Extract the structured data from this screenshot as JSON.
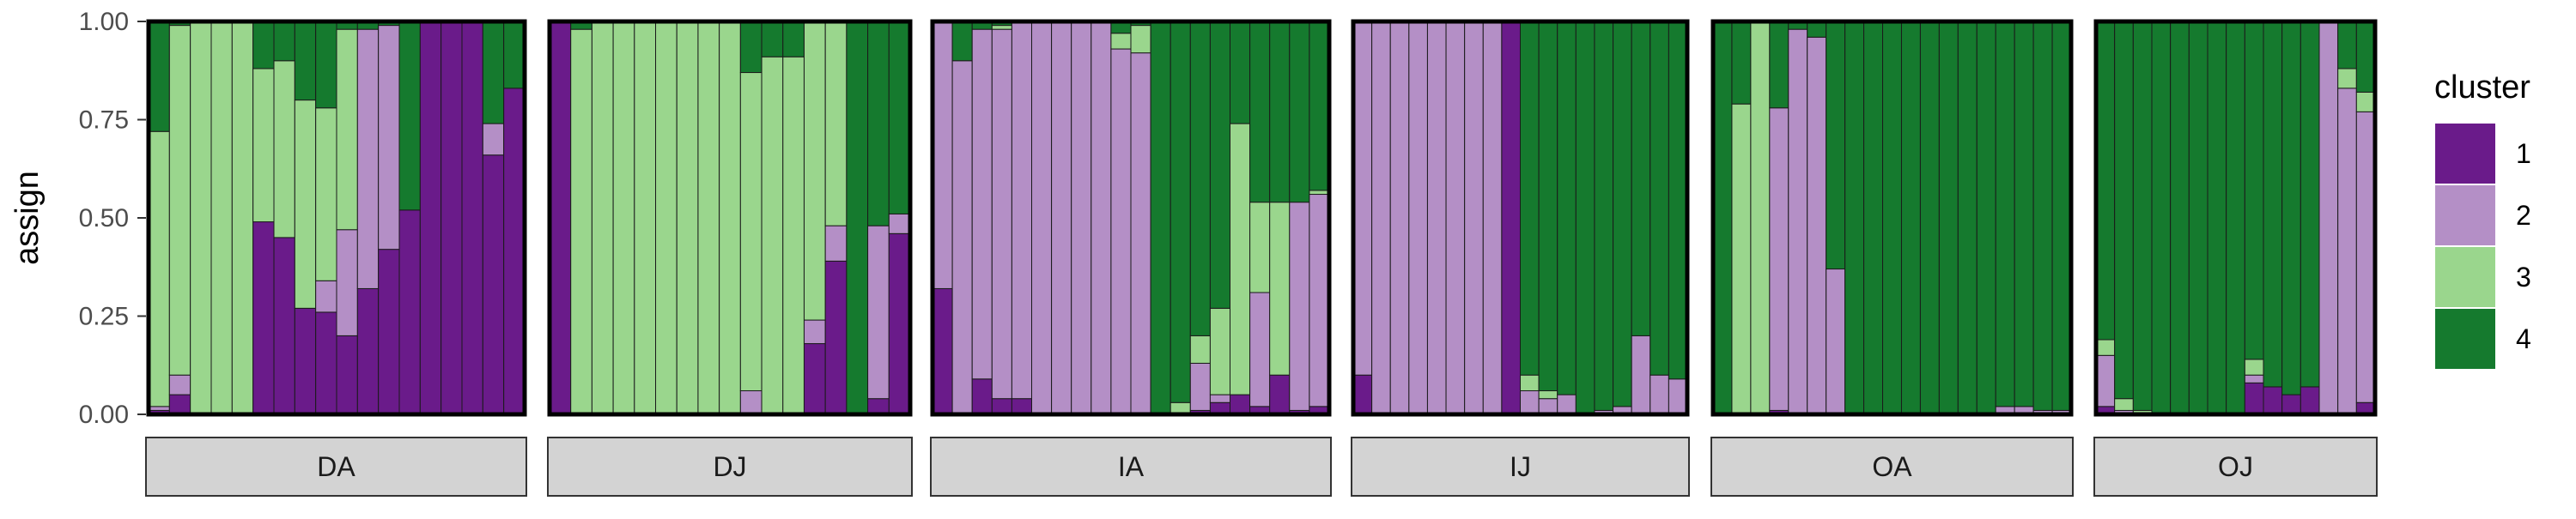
{
  "chart_data": {
    "type": "bar",
    "subtype": "stacked-100-faceted",
    "ylabel": "assign",
    "xlabel": "",
    "ylim": [
      0,
      1
    ],
    "yticks": [
      "0.00",
      "0.25",
      "0.50",
      "0.75",
      "1.00"
    ],
    "legend": {
      "title": "cluster",
      "position": "right",
      "entries": [
        {
          "label": "1",
          "color": "#6a1b8a"
        },
        {
          "label": "2",
          "color": "#b48fc6"
        },
        {
          "label": "3",
          "color": "#9ad68d"
        },
        {
          "label": "4",
          "color": "#157a2e"
        }
      ]
    },
    "stack_order": [
      "1",
      "2",
      "3",
      "4"
    ],
    "facets": [
      {
        "label": "DA",
        "bars": [
          [
            0.01,
            0.01,
            0.7,
            0.28
          ],
          [
            0.05,
            0.05,
            0.89,
            0.01
          ],
          [
            0.0,
            0.0,
            1.0,
            0.0
          ],
          [
            0.0,
            0.0,
            1.0,
            0.0
          ],
          [
            0.0,
            0.0,
            1.0,
            0.0
          ],
          [
            0.49,
            0.0,
            0.39,
            0.12
          ],
          [
            0.45,
            0.0,
            0.45,
            0.1
          ],
          [
            0.27,
            0.0,
            0.53,
            0.2
          ],
          [
            0.26,
            0.08,
            0.44,
            0.22
          ],
          [
            0.2,
            0.27,
            0.51,
            0.02
          ],
          [
            0.32,
            0.66,
            0.0,
            0.02
          ],
          [
            0.42,
            0.57,
            0.0,
            0.01
          ],
          [
            0.52,
            0.0,
            0.0,
            0.48
          ],
          [
            1.0,
            0.0,
            0.0,
            0.0
          ],
          [
            1.0,
            0.0,
            0.0,
            0.0
          ],
          [
            1.0,
            0.0,
            0.0,
            0.0
          ],
          [
            0.66,
            0.08,
            0.0,
            0.26
          ],
          [
            0.83,
            0.0,
            0.0,
            0.17
          ]
        ]
      },
      {
        "label": "DJ",
        "bars": [
          [
            1.0,
            0.0,
            0.0,
            0.0
          ],
          [
            0.0,
            0.0,
            0.98,
            0.02
          ],
          [
            0.0,
            0.0,
            1.0,
            0.0
          ],
          [
            0.0,
            0.0,
            1.0,
            0.0
          ],
          [
            0.0,
            0.0,
            1.0,
            0.0
          ],
          [
            0.0,
            0.0,
            1.0,
            0.0
          ],
          [
            0.0,
            0.0,
            1.0,
            0.0
          ],
          [
            0.0,
            0.0,
            1.0,
            0.0
          ],
          [
            0.0,
            0.0,
            1.0,
            0.0
          ],
          [
            0.0,
            0.06,
            0.81,
            0.13
          ],
          [
            0.0,
            0.0,
            0.91,
            0.09
          ],
          [
            0.0,
            0.0,
            0.91,
            0.09
          ],
          [
            0.18,
            0.06,
            0.76,
            0.0
          ],
          [
            0.39,
            0.09,
            0.52,
            0.0
          ],
          [
            0.0,
            0.0,
            0.0,
            1.0
          ],
          [
            0.04,
            0.44,
            0.0,
            0.52
          ],
          [
            0.46,
            0.05,
            0.0,
            0.49
          ]
        ]
      },
      {
        "label": "IA",
        "bars": [
          [
            0.32,
            0.68,
            0.0,
            0.0
          ],
          [
            0.0,
            0.9,
            0.0,
            0.1
          ],
          [
            0.09,
            0.89,
            0.0,
            0.02
          ],
          [
            0.04,
            0.94,
            0.01,
            0.01
          ],
          [
            0.04,
            0.96,
            0.0,
            0.0
          ],
          [
            0.0,
            1.0,
            0.0,
            0.0
          ],
          [
            0.0,
            1.0,
            0.0,
            0.0
          ],
          [
            0.0,
            1.0,
            0.0,
            0.0
          ],
          [
            0.0,
            1.0,
            0.0,
            0.0
          ],
          [
            0.0,
            0.93,
            0.04,
            0.03
          ],
          [
            0.0,
            0.92,
            0.07,
            0.01
          ],
          [
            0.0,
            0.0,
            0.0,
            1.0
          ],
          [
            0.0,
            0.0,
            0.03,
            0.97
          ],
          [
            0.01,
            0.12,
            0.07,
            0.8
          ],
          [
            0.03,
            0.02,
            0.22,
            0.73
          ],
          [
            0.05,
            0.0,
            0.69,
            0.26
          ],
          [
            0.02,
            0.29,
            0.23,
            0.46
          ],
          [
            0.1,
            0.0,
            0.44,
            0.46
          ],
          [
            0.01,
            0.53,
            0.0,
            0.46
          ],
          [
            0.02,
            0.54,
            0.01,
            0.43
          ]
        ]
      },
      {
        "label": "IJ",
        "bars": [
          [
            0.1,
            0.9,
            0.0,
            0.0
          ],
          [
            0.0,
            1.0,
            0.0,
            0.0
          ],
          [
            0.0,
            1.0,
            0.0,
            0.0
          ],
          [
            0.0,
            1.0,
            0.0,
            0.0
          ],
          [
            0.0,
            1.0,
            0.0,
            0.0
          ],
          [
            0.0,
            1.0,
            0.0,
            0.0
          ],
          [
            0.0,
            1.0,
            0.0,
            0.0
          ],
          [
            0.0,
            1.0,
            0.0,
            0.0
          ],
          [
            1.0,
            0.0,
            0.0,
            0.0
          ],
          [
            0.0,
            0.06,
            0.04,
            0.9
          ],
          [
            0.0,
            0.04,
            0.02,
            0.94
          ],
          [
            0.0,
            0.05,
            0.0,
            0.95
          ],
          [
            0.0,
            0.0,
            0.0,
            1.0
          ],
          [
            0.0,
            0.01,
            0.0,
            0.99
          ],
          [
            0.0,
            0.02,
            0.0,
            0.98
          ],
          [
            0.0,
            0.2,
            0.0,
            0.8
          ],
          [
            0.0,
            0.1,
            0.0,
            0.9
          ],
          [
            0.0,
            0.09,
            0.0,
            0.91
          ]
        ]
      },
      {
        "label": "OA",
        "bars": [
          [
            0.0,
            0.0,
            0.0,
            1.0
          ],
          [
            0.0,
            0.0,
            0.79,
            0.21
          ],
          [
            0.0,
            0.0,
            1.0,
            0.0
          ],
          [
            0.01,
            0.77,
            0.0,
            0.22
          ],
          [
            0.0,
            0.98,
            0.0,
            0.02
          ],
          [
            0.0,
            0.96,
            0.0,
            0.04
          ],
          [
            0.0,
            0.37,
            0.0,
            0.63
          ],
          [
            0.0,
            0.0,
            0.0,
            1.0
          ],
          [
            0.0,
            0.0,
            0.0,
            1.0
          ],
          [
            0.0,
            0.0,
            0.0,
            1.0
          ],
          [
            0.0,
            0.0,
            0.0,
            1.0
          ],
          [
            0.0,
            0.0,
            0.0,
            1.0
          ],
          [
            0.0,
            0.0,
            0.0,
            1.0
          ],
          [
            0.0,
            0.0,
            0.0,
            1.0
          ],
          [
            0.0,
            0.0,
            0.0,
            1.0
          ],
          [
            0.0,
            0.02,
            0.0,
            0.98
          ],
          [
            0.0,
            0.02,
            0.0,
            0.98
          ],
          [
            0.0,
            0.01,
            0.0,
            0.99
          ],
          [
            0.0,
            0.01,
            0.0,
            0.99
          ]
        ]
      },
      {
        "label": "OJ",
        "bars": [
          [
            0.02,
            0.13,
            0.04,
            0.81
          ],
          [
            0.0,
            0.01,
            0.03,
            0.96
          ],
          [
            0.0,
            0.0,
            0.01,
            0.99
          ],
          [
            0.0,
            0.0,
            0.0,
            1.0
          ],
          [
            0.0,
            0.0,
            0.0,
            1.0
          ],
          [
            0.0,
            0.0,
            0.0,
            1.0
          ],
          [
            0.0,
            0.0,
            0.0,
            1.0
          ],
          [
            0.0,
            0.0,
            0.0,
            1.0
          ],
          [
            0.08,
            0.02,
            0.04,
            0.86
          ],
          [
            0.07,
            0.0,
            0.0,
            0.93
          ],
          [
            0.05,
            0.0,
            0.0,
            0.95
          ],
          [
            0.07,
            0.0,
            0.0,
            0.93
          ],
          [
            0.0,
            1.0,
            0.0,
            0.0
          ],
          [
            0.0,
            0.83,
            0.05,
            0.12
          ],
          [
            0.03,
            0.74,
            0.05,
            0.18
          ]
        ]
      }
    ],
    "grid": false
  }
}
